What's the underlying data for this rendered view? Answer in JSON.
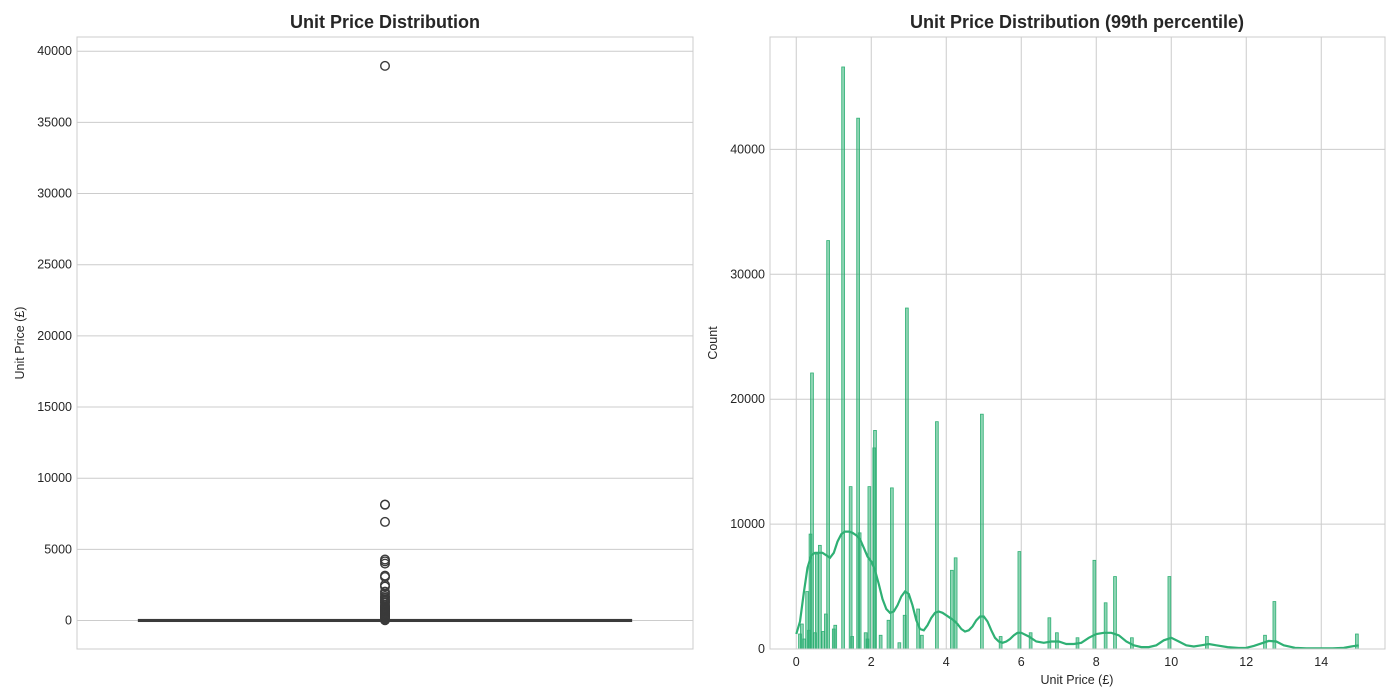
{
  "chart_data": [
    {
      "type": "box",
      "title": "Unit Price Distribution",
      "xlabel": "",
      "ylabel": "Unit Price (£)",
      "ylim": [
        -2000,
        41000
      ],
      "yticks": [
        0,
        5000,
        10000,
        15000,
        20000,
        25000,
        30000,
        35000,
        40000
      ],
      "grid": true,
      "box": {
        "min": 0,
        "q1": 1.25,
        "median": 2.08,
        "q3": 4.13,
        "max": 8.4
      },
      "outliers": [
        38970,
        8142,
        8142,
        6930,
        4287,
        4161,
        4000,
        3155,
        3060,
        2500,
        2382,
        2033,
        1867,
        1715,
        1600,
        1500,
        1400,
        1300,
        1250,
        1100,
        1000,
        950,
        900,
        850,
        800,
        750,
        700,
        650,
        600,
        550,
        500,
        450,
        400,
        350,
        300,
        250,
        200,
        150,
        100,
        50,
        20
      ],
      "color": "#3a3a3a"
    },
    {
      "type": "histogram",
      "title": "Unit Price Distribution (99th percentile)",
      "xlabel": "Unit Price (£)",
      "ylabel": "Count",
      "xlim": [
        -0.7,
        15.7
      ],
      "ylim": [
        0,
        49000
      ],
      "xticks": [
        0,
        2,
        4,
        6,
        8,
        10,
        12,
        14
      ],
      "yticks": [
        0,
        10000,
        20000,
        30000,
        40000
      ],
      "grid": true,
      "bin_width": 0.075,
      "bars": [
        {
          "x": 0.1,
          "y": 1200
        },
        {
          "x": 0.15,
          "y": 2000
        },
        {
          "x": 0.21,
          "y": 800
        },
        {
          "x": 0.29,
          "y": 4600
        },
        {
          "x": 0.34,
          "y": 1500
        },
        {
          "x": 0.38,
          "y": 9200
        },
        {
          "x": 0.42,
          "y": 22100
        },
        {
          "x": 0.5,
          "y": 1300
        },
        {
          "x": 0.55,
          "y": 7600
        },
        {
          "x": 0.63,
          "y": 8300
        },
        {
          "x": 0.72,
          "y": 1400
        },
        {
          "x": 0.79,
          "y": 2800
        },
        {
          "x": 0.85,
          "y": 32700
        },
        {
          "x": 1.0,
          "y": 1600
        },
        {
          "x": 1.04,
          "y": 1900
        },
        {
          "x": 1.25,
          "y": 46600
        },
        {
          "x": 1.45,
          "y": 13000
        },
        {
          "x": 1.49,
          "y": 1000
        },
        {
          "x": 1.65,
          "y": 42500
        },
        {
          "x": 1.69,
          "y": 9300
        },
        {
          "x": 1.85,
          "y": 1300
        },
        {
          "x": 1.9,
          "y": 800
        },
        {
          "x": 1.95,
          "y": 13000
        },
        {
          "x": 2.08,
          "y": 16100
        },
        {
          "x": 2.1,
          "y": 17500
        },
        {
          "x": 2.25,
          "y": 1100
        },
        {
          "x": 2.46,
          "y": 2300
        },
        {
          "x": 2.55,
          "y": 12900
        },
        {
          "x": 2.75,
          "y": 500
        },
        {
          "x": 2.89,
          "y": 2700
        },
        {
          "x": 2.95,
          "y": 27300
        },
        {
          "x": 3.25,
          "y": 3200
        },
        {
          "x": 3.35,
          "y": 1100
        },
        {
          "x": 3.75,
          "y": 18200
        },
        {
          "x": 4.15,
          "y": 6300
        },
        {
          "x": 4.25,
          "y": 7300
        },
        {
          "x": 4.95,
          "y": 18800
        },
        {
          "x": 5.45,
          "y": 1000
        },
        {
          "x": 5.95,
          "y": 7800
        },
        {
          "x": 6.25,
          "y": 1300
        },
        {
          "x": 6.75,
          "y": 2500
        },
        {
          "x": 6.95,
          "y": 1300
        },
        {
          "x": 7.5,
          "y": 900
        },
        {
          "x": 7.95,
          "y": 7100
        },
        {
          "x": 8.25,
          "y": 3700
        },
        {
          "x": 8.5,
          "y": 5800
        },
        {
          "x": 8.95,
          "y": 900
        },
        {
          "x": 9.95,
          "y": 5800
        },
        {
          "x": 10.95,
          "y": 1000
        },
        {
          "x": 12.5,
          "y": 1100
        },
        {
          "x": 12.75,
          "y": 3800
        },
        {
          "x": 14.95,
          "y": 1200
        }
      ],
      "kde": [
        [
          0.0,
          1200
        ],
        [
          0.1,
          2200
        ],
        [
          0.2,
          4500
        ],
        [
          0.3,
          6500
        ],
        [
          0.4,
          7500
        ],
        [
          0.5,
          7700
        ],
        [
          0.6,
          7700
        ],
        [
          0.7,
          7700
        ],
        [
          0.8,
          7500
        ],
        [
          0.9,
          7300
        ],
        [
          1.0,
          7700
        ],
        [
          1.1,
          8600
        ],
        [
          1.2,
          9200
        ],
        [
          1.3,
          9400
        ],
        [
          1.4,
          9400
        ],
        [
          1.5,
          9300
        ],
        [
          1.6,
          9100
        ],
        [
          1.7,
          8800
        ],
        [
          1.8,
          8100
        ],
        [
          1.9,
          7400
        ],
        [
          2.0,
          7000
        ],
        [
          2.1,
          6300
        ],
        [
          2.2,
          5200
        ],
        [
          2.3,
          4000
        ],
        [
          2.4,
          3200
        ],
        [
          2.5,
          2900
        ],
        [
          2.6,
          3000
        ],
        [
          2.7,
          3500
        ],
        [
          2.8,
          4200
        ],
        [
          2.9,
          4600
        ],
        [
          3.0,
          4400
        ],
        [
          3.1,
          3500
        ],
        [
          3.2,
          2300
        ],
        [
          3.3,
          1600
        ],
        [
          3.4,
          1500
        ],
        [
          3.5,
          1900
        ],
        [
          3.6,
          2500
        ],
        [
          3.7,
          2900
        ],
        [
          3.8,
          3000
        ],
        [
          3.9,
          2900
        ],
        [
          4.0,
          2700
        ],
        [
          4.1,
          2500
        ],
        [
          4.2,
          2300
        ],
        [
          4.3,
          2000
        ],
        [
          4.4,
          1600
        ],
        [
          4.5,
          1400
        ],
        [
          4.6,
          1500
        ],
        [
          4.7,
          1800
        ],
        [
          4.8,
          2300
        ],
        [
          4.9,
          2600
        ],
        [
          5.0,
          2600
        ],
        [
          5.1,
          2200
        ],
        [
          5.2,
          1500
        ],
        [
          5.3,
          900
        ],
        [
          5.4,
          600
        ],
        [
          5.5,
          500
        ],
        [
          5.6,
          600
        ],
        [
          5.7,
          800
        ],
        [
          5.8,
          1100
        ],
        [
          5.9,
          1300
        ],
        [
          6.0,
          1300
        ],
        [
          6.2,
          1000
        ],
        [
          6.4,
          600
        ],
        [
          6.6,
          500
        ],
        [
          6.8,
          600
        ],
        [
          7.0,
          600
        ],
        [
          7.2,
          400
        ],
        [
          7.4,
          400
        ],
        [
          7.6,
          500
        ],
        [
          7.8,
          900
        ],
        [
          8.0,
          1200
        ],
        [
          8.2,
          1300
        ],
        [
          8.4,
          1300
        ],
        [
          8.6,
          1100
        ],
        [
          8.8,
          600
        ],
        [
          9.0,
          300
        ],
        [
          9.2,
          150
        ],
        [
          9.4,
          150
        ],
        [
          9.6,
          300
        ],
        [
          9.8,
          700
        ],
        [
          10.0,
          900
        ],
        [
          10.2,
          600
        ],
        [
          10.4,
          300
        ],
        [
          10.6,
          200
        ],
        [
          10.8,
          300
        ],
        [
          11.0,
          400
        ],
        [
          11.2,
          300
        ],
        [
          11.5,
          150
        ],
        [
          11.8,
          80
        ],
        [
          12.0,
          100
        ],
        [
          12.2,
          250
        ],
        [
          12.4,
          450
        ],
        [
          12.6,
          650
        ],
        [
          12.8,
          600
        ],
        [
          13.0,
          300
        ],
        [
          13.3,
          100
        ],
        [
          13.6,
          60
        ],
        [
          14.0,
          50
        ],
        [
          14.3,
          60
        ],
        [
          14.6,
          100
        ],
        [
          14.8,
          200
        ],
        [
          15.0,
          300
        ]
      ],
      "color": "#2fb074"
    }
  ]
}
